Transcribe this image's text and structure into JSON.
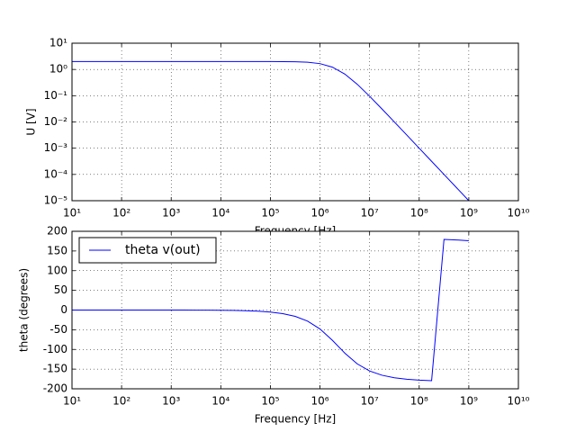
{
  "chart_data": [
    {
      "type": "line",
      "ylabel": "U [V]",
      "xlabel": "Frequency [Hz]",
      "color": "#0000ff",
      "xlog": true,
      "ylog": true,
      "grid": true,
      "x": [
        10,
        17.78,
        31.62,
        56.23,
        100,
        177.8,
        316.2,
        562.3,
        1000,
        1778,
        3162,
        5623,
        10000,
        17783,
        31623,
        56234,
        100000,
        177828,
        316228,
        562341,
        1000000,
        1778279,
        3162278,
        5623413,
        10000000,
        17782794,
        31622777,
        56234133,
        100000000,
        177827941,
        316227766,
        562341325,
        1000000000
      ],
      "values": [
        2,
        2,
        2,
        2,
        2,
        2,
        2,
        2,
        2,
        2,
        2,
        2,
        2,
        2,
        2,
        1.999,
        1.996,
        1.987,
        1.961,
        1.881,
        1.667,
        1.226,
        0.667,
        0.274,
        0.0955,
        0.0312,
        0.00997,
        0.00316,
        0.001,
        0.000317,
        0.0001,
        3.17e-05,
        1e-05
      ],
      "xlim": [
        10,
        10000000000
      ],
      "ylim": [
        1e-05,
        10
      ],
      "xticks": [
        {
          "value": 10,
          "label": "10¹"
        },
        {
          "value": 100,
          "label": "10²"
        },
        {
          "value": 1000,
          "label": "10³"
        },
        {
          "value": 10000,
          "label": "10⁴"
        },
        {
          "value": 100000,
          "label": "10⁵"
        },
        {
          "value": 1000000,
          "label": "10⁶"
        },
        {
          "value": 10000000,
          "label": "10⁷"
        },
        {
          "value": 100000000,
          "label": "10⁸"
        },
        {
          "value": 1000000000,
          "label": "10⁹"
        },
        {
          "value": 10000000000,
          "label": "10¹⁰"
        }
      ],
      "yticks": [
        {
          "value": 1e-05,
          "label": "10⁻⁵"
        },
        {
          "value": 0.0001,
          "label": "10⁻⁴"
        },
        {
          "value": 0.001,
          "label": "10⁻³"
        },
        {
          "value": 0.01,
          "label": "10⁻²"
        },
        {
          "value": 0.1,
          "label": "10⁻¹"
        },
        {
          "value": 1,
          "label": "10⁰"
        },
        {
          "value": 10,
          "label": "10¹"
        }
      ]
    },
    {
      "type": "line",
      "ylabel": "theta (degrees)",
      "xlabel": "Frequency [Hz]",
      "xlog": true,
      "ylog": false,
      "grid": true,
      "legend": "upper left",
      "x": [
        10,
        17.78,
        31.62,
        56.23,
        100,
        177.8,
        316.2,
        562.3,
        1000,
        1778,
        3162,
        5623,
        10000,
        17783,
        31623,
        56234,
        100000,
        177828,
        316228,
        562341,
        1000000,
        1778279,
        3162278,
        5623413,
        10000000,
        17782794,
        31622777,
        56234133,
        100000000,
        177827941,
        316227766,
        562341325,
        1000000000
      ],
      "series": [
        {
          "name": "theta v(out)",
          "color": "#0000ff",
          "values": [
            0,
            0,
            0,
            0,
            0,
            0,
            -0.01,
            -0.02,
            -0.05,
            -0.09,
            -0.16,
            -0.29,
            -0.51,
            -0.91,
            -1.62,
            -2.88,
            -5.12,
            -9.08,
            -16.1,
            -28.2,
            -48.1,
            -76.9,
            -109.4,
            -136.6,
            -154.8,
            -165.6,
            -172.0,
            -175.6,
            -177.9,
            -179.3,
            179.5,
            178.1,
            176.1
          ]
        }
      ],
      "xlim": [
        10,
        10000000000
      ],
      "ylim": [
        -200,
        200
      ],
      "xticks": [
        {
          "value": 10,
          "label": "10¹"
        },
        {
          "value": 100,
          "label": "10²"
        },
        {
          "value": 1000,
          "label": "10³"
        },
        {
          "value": 10000,
          "label": "10⁴"
        },
        {
          "value": 100000,
          "label": "10⁵"
        },
        {
          "value": 1000000,
          "label": "10⁶"
        },
        {
          "value": 10000000,
          "label": "10⁷"
        },
        {
          "value": 100000000,
          "label": "10⁸"
        },
        {
          "value": 1000000000,
          "label": "10⁹"
        },
        {
          "value": 10000000000,
          "label": "10¹⁰"
        }
      ],
      "yticks": [
        -200,
        -150,
        -100,
        -50,
        0,
        50,
        100,
        150,
        200
      ]
    }
  ]
}
